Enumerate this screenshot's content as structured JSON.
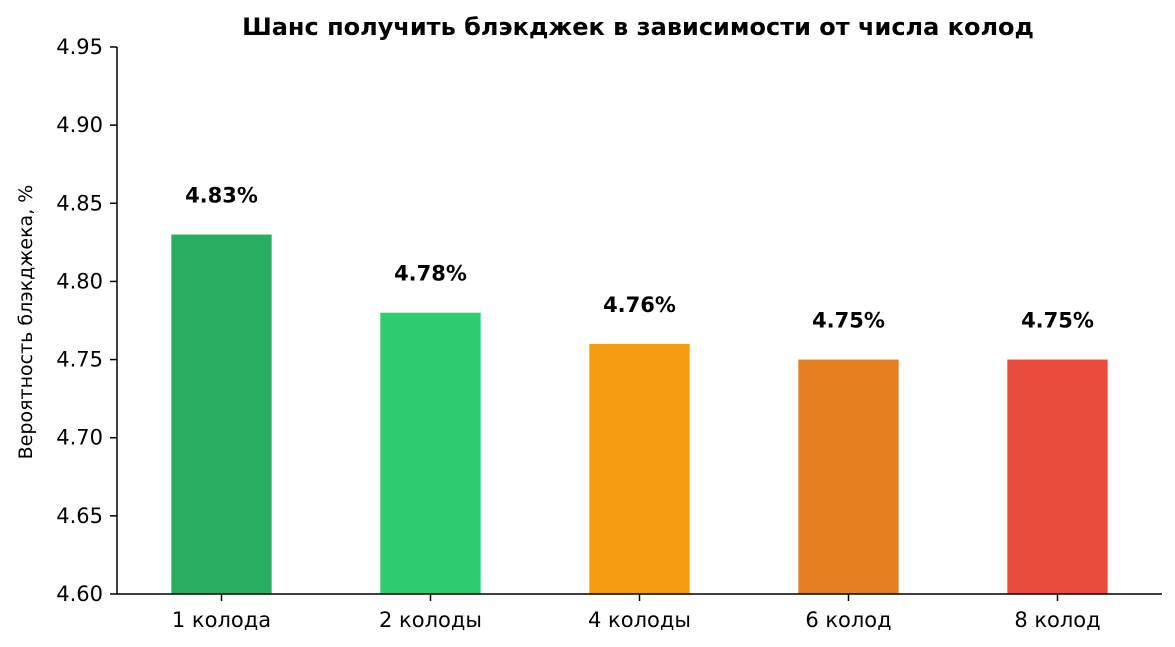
{
  "chart_data": {
    "type": "bar",
    "title": "Шанс получить блэкджек в зависимости от числа колод",
    "xlabel": "",
    "ylabel": "Вероятность блэкджека, %",
    "ylim": [
      4.6,
      4.95
    ],
    "yticks": [
      "4.60",
      "4.65",
      "4.70",
      "4.75",
      "4.80",
      "4.85",
      "4.90",
      "4.95"
    ],
    "grid": false,
    "categories": [
      "1 колода",
      "2 колоды",
      "4 колоды",
      "6 колод",
      "8 колод"
    ],
    "values": [
      4.83,
      4.78,
      4.76,
      4.75,
      4.75
    ],
    "value_labels": [
      "4.83%",
      "4.78%",
      "4.76%",
      "4.75%",
      "4.75%"
    ],
    "colors": [
      "#27ae60",
      "#2ecc71",
      "#f39c12",
      "#e67e22",
      "#e74c3c"
    ]
  }
}
